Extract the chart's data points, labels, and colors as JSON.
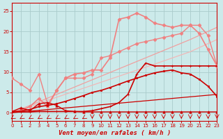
{
  "bg_color": "#cceaea",
  "grid_color": "#aacccc",
  "xlabel": "Vent moyen/en rafales ( km/h )",
  "xlabel_color": "#cc0000",
  "tick_color": "#cc0000",
  "x_ticks": [
    0,
    1,
    2,
    3,
    4,
    5,
    6,
    7,
    8,
    9,
    10,
    11,
    12,
    13,
    14,
    15,
    16,
    17,
    18,
    19,
    20,
    21,
    22,
    23
  ],
  "y_ticks": [
    0,
    5,
    10,
    15,
    20,
    25
  ],
  "xlim": [
    0,
    23
  ],
  "ylim": [
    0,
    27
  ],
  "series": [
    {
      "x": [
        0,
        5,
        10,
        15,
        20,
        23
      ],
      "y": [
        0,
        4.5,
        9.0,
        13.5,
        18.0,
        21.0
      ],
      "color": "#f0a0a0",
      "lw": 0.9,
      "marker": null,
      "ms": 0
    },
    {
      "x": [
        0,
        5,
        10,
        15,
        20,
        23
      ],
      "y": [
        0,
        3.8,
        7.5,
        11.2,
        15.0,
        18.0
      ],
      "color": "#f0b8b8",
      "lw": 0.9,
      "marker": null,
      "ms": 0
    },
    {
      "x": [
        0,
        1,
        2,
        3,
        4,
        5,
        6,
        7,
        8,
        9,
        10,
        11,
        12,
        13,
        14,
        15,
        16,
        17,
        18,
        19,
        20,
        21,
        22,
        23
      ],
      "y": [
        8.5,
        7.0,
        5.5,
        9.5,
        2.0,
        5.5,
        8.5,
        8.5,
        8.5,
        9.5,
        13.5,
        14.0,
        15.0,
        16.0,
        17.0,
        17.5,
        18.0,
        18.5,
        19.0,
        19.5,
        21.5,
        21.5,
        19.0,
        11.5
      ],
      "color": "#f08080",
      "lw": 1.0,
      "marker": "D",
      "ms": 2.5
    },
    {
      "x": [
        0,
        1,
        2,
        3,
        4,
        5,
        6,
        7,
        8,
        9,
        10,
        11,
        12,
        13,
        14,
        15,
        16,
        17,
        18,
        19,
        20,
        21,
        22,
        23
      ],
      "y": [
        0.3,
        0.5,
        1.5,
        3.5,
        1.5,
        5.5,
        8.5,
        9.5,
        9.8,
        10.5,
        10.5,
        13.5,
        23.0,
        23.5,
        24.5,
        23.5,
        22.0,
        21.5,
        21.0,
        21.5,
        21.5,
        19.5,
        15.5,
        11.5
      ],
      "color": "#f08080",
      "lw": 1.2,
      "marker": "D",
      "ms": 2.5
    },
    {
      "x": [
        0,
        1,
        2,
        3,
        4,
        5,
        6,
        7,
        8,
        9,
        10,
        11,
        12,
        13,
        14,
        15,
        16,
        17,
        18,
        19,
        20,
        21,
        22,
        23
      ],
      "y": [
        0.2,
        0.4,
        0.8,
        1.5,
        1.8,
        2.2,
        2.8,
        3.5,
        4.2,
        5.0,
        5.5,
        6.2,
        7.0,
        7.8,
        8.5,
        9.2,
        9.8,
        10.2,
        10.5,
        9.8,
        9.5,
        8.2,
        6.5,
        4.0
      ],
      "color": "#cc0000",
      "lw": 1.2,
      "marker": "s",
      "ms": 2.0
    },
    {
      "x": [
        0,
        23
      ],
      "y": [
        0,
        4.5
      ],
      "color": "#cc0000",
      "lw": 0.9,
      "marker": null,
      "ms": 0
    },
    {
      "x": [
        0,
        1,
        2,
        3,
        4,
        5,
        6,
        7,
        8,
        9,
        10,
        11,
        12,
        13,
        14,
        15,
        16,
        17,
        18,
        19,
        20,
        21,
        22,
        23
      ],
      "y": [
        0.2,
        0.2,
        0.2,
        0.3,
        0.3,
        0.3,
        0.3,
        0.3,
        0.3,
        0.5,
        1.0,
        1.5,
        2.5,
        4.5,
        9.5,
        12.2,
        11.5,
        11.5,
        11.5,
        11.5,
        11.5,
        11.5,
        11.5,
        11.5
      ],
      "color": "#cc0000",
      "lw": 1.2,
      "marker": "+",
      "ms": 3.5
    },
    {
      "x": [
        0,
        1,
        2,
        3,
        4,
        5,
        6,
        7,
        8,
        9,
        10,
        11,
        12,
        13,
        14,
        15,
        16,
        17,
        18,
        19,
        20,
        21,
        22,
        23
      ],
      "y": [
        0.3,
        1.2,
        0.5,
        2.2,
        2.5,
        1.8,
        0.5,
        0.3,
        0.2,
        0.2,
        0.2,
        0.2,
        0.2,
        0.2,
        0.2,
        0.2,
        0.2,
        0.2,
        0.2,
        0.2,
        0.2,
        0.2,
        0.2,
        0.2
      ],
      "color": "#cc0000",
      "lw": 1.0,
      "marker": "^",
      "ms": 2.5
    }
  ],
  "arrows": {
    "x": [
      0,
      1,
      2,
      3,
      4,
      5,
      6,
      7,
      8,
      9,
      10,
      11,
      12,
      13,
      14,
      15,
      16,
      17,
      18,
      19,
      20,
      21,
      22,
      23
    ],
    "directions_diagonal": [
      0,
      1,
      2,
      3,
      4,
      5,
      6,
      7,
      8
    ],
    "directions_down": [
      9,
      10,
      11,
      12,
      13,
      14,
      15,
      16,
      17,
      18,
      19,
      20,
      21,
      22,
      23
    ],
    "color": "#cc0000"
  }
}
